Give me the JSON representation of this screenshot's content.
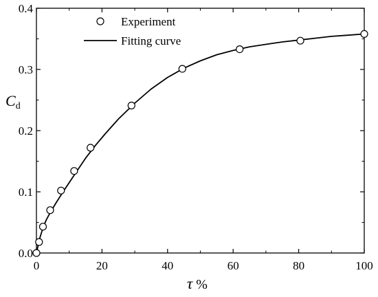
{
  "chart_data": {
    "type": "scatter",
    "title": "",
    "xlabel": {
      "symbol": "τ",
      "unit": "%"
    },
    "ylabel": {
      "symbol": "C",
      "subscript": "d"
    },
    "xlim": [
      0,
      100
    ],
    "ylim": [
      0,
      0.4
    ],
    "xticks": [
      0,
      20,
      40,
      60,
      80,
      100
    ],
    "xtick_labels": [
      "0",
      "20",
      "40",
      "60",
      "80",
      "100"
    ],
    "yticks": [
      0,
      0.1,
      0.2,
      0.3,
      0.4
    ],
    "ytick_labels": [
      "0.0",
      "0.1",
      "0.2",
      "0.3",
      "0.4"
    ],
    "grid": false,
    "legend_position": "top-left",
    "series": [
      {
        "name": "Experiment",
        "type": "scatter",
        "marker": "open-circle",
        "color": "#000000",
        "x": [
          0,
          0.8,
          2.0,
          4.2,
          7.5,
          11.5,
          16.5,
          29.0,
          44.5,
          62.0,
          80.5,
          100.0
        ],
        "y": [
          0.0,
          0.018,
          0.043,
          0.07,
          0.102,
          0.134,
          0.172,
          0.241,
          0.301,
          0.333,
          0.347,
          0.358
        ]
      },
      {
        "name": "Fitting curve",
        "type": "line",
        "color": "#000000",
        "x": [
          0,
          1,
          2,
          3,
          4,
          5,
          6,
          8,
          10,
          12,
          15,
          18,
          21,
          25,
          30,
          35,
          40,
          45,
          50,
          55,
          60,
          65,
          70,
          75,
          80,
          85,
          90,
          95,
          100
        ],
        "y": [
          0.0,
          0.024,
          0.041,
          0.054,
          0.064,
          0.073,
          0.082,
          0.099,
          0.115,
          0.131,
          0.155,
          0.176,
          0.195,
          0.219,
          0.245,
          0.268,
          0.287,
          0.302,
          0.314,
          0.324,
          0.331,
          0.337,
          0.341,
          0.345,
          0.348,
          0.351,
          0.354,
          0.356,
          0.358
        ]
      }
    ]
  }
}
